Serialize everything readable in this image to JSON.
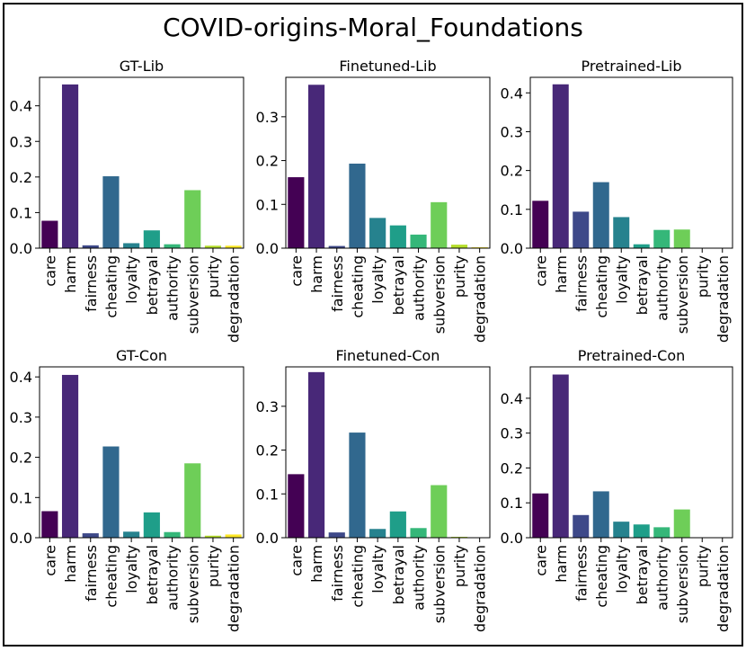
{
  "chart_data": {
    "title": "COVID-origins-Moral_Foundations",
    "type": "bar",
    "categories": [
      "care",
      "harm",
      "fairness",
      "cheating",
      "loyalty",
      "betrayal",
      "authority",
      "subversion",
      "purity",
      "degradation"
    ],
    "colors": [
      "#440154",
      "#482878",
      "#3e4989",
      "#31688e",
      "#26828e",
      "#1f9e89",
      "#35b779",
      "#6ece58",
      "#b5de2b",
      "#fde725"
    ],
    "panels": [
      {
        "title": "GT-Lib",
        "ylim": [
          0,
          0.48
        ],
        "yticks": [
          0.0,
          0.1,
          0.2,
          0.3,
          0.4
        ],
        "yticklabels": [
          "0.0",
          "0.1",
          "0.2",
          "0.3",
          "0.4"
        ],
        "values": [
          0.077,
          0.46,
          0.008,
          0.202,
          0.014,
          0.05,
          0.011,
          0.163,
          0.007,
          0.007
        ]
      },
      {
        "title": "Finetuned-Lib",
        "ylim": [
          0,
          0.39
        ],
        "yticks": [
          0.0,
          0.1,
          0.2,
          0.3
        ],
        "yticklabels": [
          "0.0",
          "0.1",
          "0.2",
          "0.3"
        ],
        "values": [
          0.162,
          0.373,
          0.005,
          0.193,
          0.069,
          0.052,
          0.031,
          0.105,
          0.008,
          0.002
        ]
      },
      {
        "title": "Pretrained-Lib",
        "ylim": [
          0,
          0.44
        ],
        "yticks": [
          0.0,
          0.1,
          0.2,
          0.3,
          0.4
        ],
        "yticklabels": [
          "0.0",
          "0.1",
          "0.2",
          "0.3",
          "0.4"
        ],
        "values": [
          0.122,
          0.422,
          0.094,
          0.17,
          0.08,
          0.01,
          0.047,
          0.048,
          0.0,
          0.0
        ]
      },
      {
        "title": "GT-Con",
        "ylim": [
          0,
          0.425
        ],
        "yticks": [
          0.0,
          0.1,
          0.2,
          0.3,
          0.4
        ],
        "yticklabels": [
          "0.0",
          "0.1",
          "0.2",
          "0.3",
          "0.4"
        ],
        "values": [
          0.066,
          0.405,
          0.011,
          0.227,
          0.015,
          0.063,
          0.014,
          0.185,
          0.005,
          0.008
        ]
      },
      {
        "title": "Finetuned-Con",
        "ylim": [
          0,
          0.39
        ],
        "yticks": [
          0.0,
          0.1,
          0.2,
          0.3
        ],
        "yticklabels": [
          "0.0",
          "0.1",
          "0.2",
          "0.3"
        ],
        "values": [
          0.145,
          0.378,
          0.012,
          0.24,
          0.02,
          0.06,
          0.022,
          0.12,
          0.002,
          0.0
        ]
      },
      {
        "title": "Pretrained-Con",
        "ylim": [
          0,
          0.49
        ],
        "yticks": [
          0.0,
          0.1,
          0.2,
          0.3,
          0.4
        ],
        "yticklabels": [
          "0.0",
          "0.1",
          "0.2",
          "0.3",
          "0.4"
        ],
        "values": [
          0.127,
          0.468,
          0.065,
          0.133,
          0.046,
          0.038,
          0.03,
          0.081,
          0.001,
          0.001
        ]
      }
    ]
  }
}
